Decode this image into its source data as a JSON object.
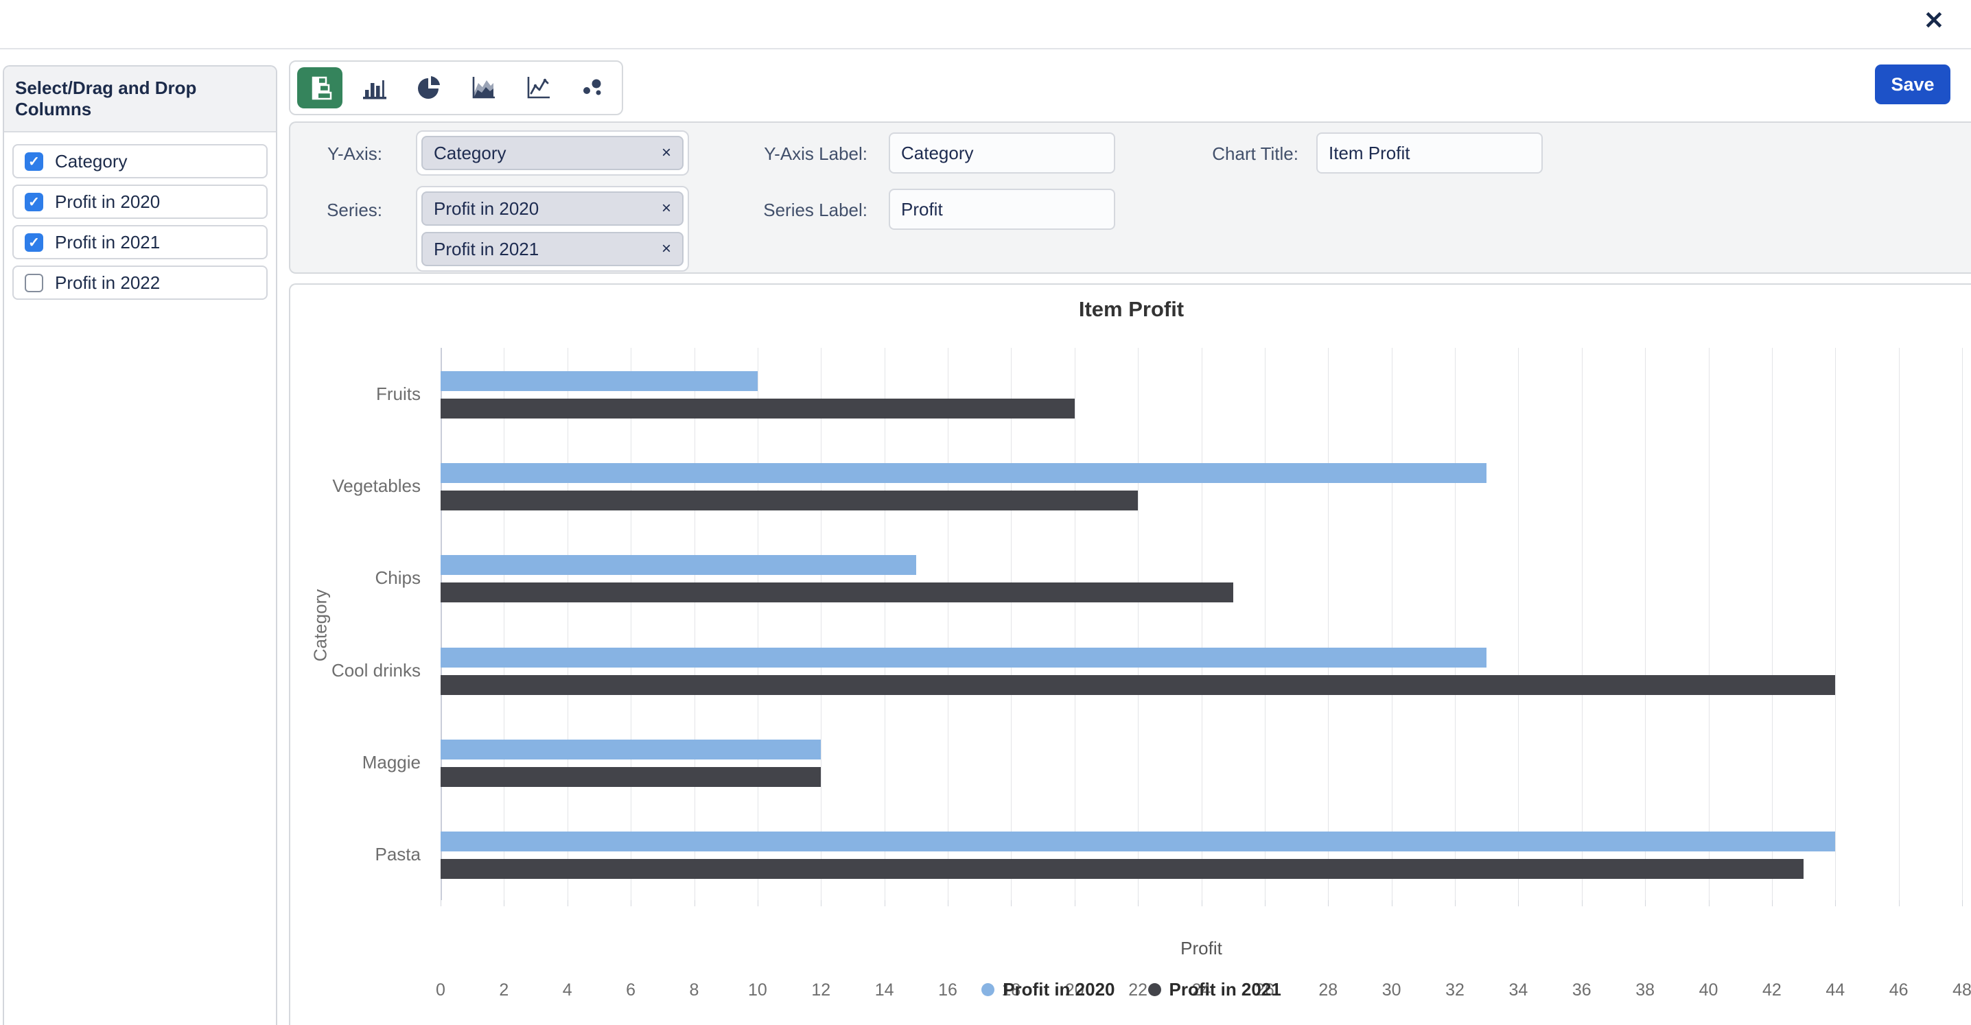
{
  "window": {
    "close_icon": "✕"
  },
  "toolbar": {
    "save_label": "Save",
    "chart_types": [
      {
        "name": "horizontal-bar",
        "selected": true
      },
      {
        "name": "column",
        "selected": false
      },
      {
        "name": "pie",
        "selected": false
      },
      {
        "name": "area",
        "selected": false
      },
      {
        "name": "line",
        "selected": false
      },
      {
        "name": "scatter",
        "selected": false
      }
    ]
  },
  "columns_panel": {
    "title": "Select/Drag and Drop Columns",
    "check_icon": "✓",
    "items": [
      {
        "label": "Category",
        "checked": true
      },
      {
        "label": "Profit in 2020",
        "checked": true
      },
      {
        "label": "Profit in 2021",
        "checked": true
      },
      {
        "label": "Profit in 2022",
        "checked": false
      }
    ]
  },
  "form": {
    "remove_icon": "×",
    "y_axis": {
      "label": "Y-Axis:",
      "chips": [
        "Category"
      ]
    },
    "series": {
      "label": "Series:",
      "chips": [
        "Profit in 2020",
        "Profit in 2021"
      ]
    },
    "y_axis_label": {
      "label": "Y-Axis Label:",
      "value": "Category"
    },
    "series_label": {
      "label": "Series Label:",
      "value": "Profit"
    },
    "chart_title": {
      "label": "Chart Title:",
      "value": "Item Profit"
    }
  },
  "chart_data": {
    "type": "bar",
    "orientation": "horizontal",
    "title": "Item Profit",
    "categories": [
      "Fruits",
      "Vegetables",
      "Chips",
      "Cool drinks",
      "Maggie",
      "Pasta"
    ],
    "series": [
      {
        "name": "Profit in 2020",
        "color": "#87b3e3",
        "values": [
          10,
          33,
          15,
          33,
          12,
          44
        ]
      },
      {
        "name": "Profit in 2021",
        "color": "#43444a",
        "values": [
          20,
          22,
          25,
          44,
          12,
          43
        ]
      }
    ],
    "xlabel": "Profit",
    "ylabel": "Category",
    "xlim": [
      0,
      48
    ],
    "tick_step": 2,
    "grid": "vertical-only",
    "legend_position": "bottom"
  },
  "colors": {
    "accent_green": "#35845c",
    "save_blue": "#1d52c8",
    "checkbox_blue": "#2e7de9",
    "bar_blue": "#87b3e3",
    "bar_dark": "#43444a"
  }
}
